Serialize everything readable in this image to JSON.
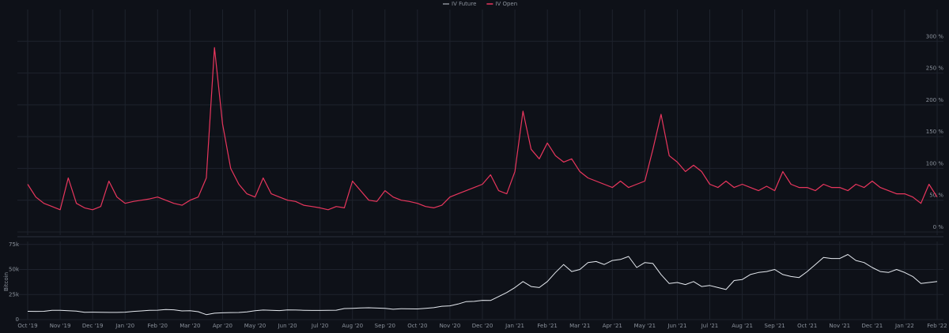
{
  "chart_data": [
    {
      "type": "line",
      "series": [
        {
          "name": "IV Future",
          "color": "#8a8f98"
        },
        {
          "name": "IV Open",
          "color": "#e8365d",
          "values": [
            75,
            55,
            45,
            40,
            35,
            85,
            45,
            38,
            35,
            40,
            80,
            55,
            45,
            48,
            50,
            52,
            55,
            50,
            45,
            42,
            50,
            55,
            85,
            290,
            170,
            100,
            75,
            60,
            55,
            85,
            60,
            55,
            50,
            48,
            42,
            40,
            38,
            35,
            40,
            38,
            80,
            65,
            50,
            48,
            65,
            55,
            50,
            48,
            45,
            40,
            38,
            42,
            55,
            60,
            65,
            70,
            75,
            90,
            65,
            60,
            95,
            190,
            130,
            115,
            140,
            120,
            110,
            115,
            95,
            85,
            80,
            75,
            70,
            80,
            70,
            75,
            80,
            130,
            185,
            120,
            110,
            95,
            105,
            95,
            75,
            70,
            80,
            70,
            75,
            70,
            65,
            72,
            65,
            95,
            75,
            70,
            70,
            65,
            75,
            70,
            70,
            65,
            75,
            70,
            80,
            70,
            65,
            60,
            60,
            55,
            45,
            75,
            55
          ]
        }
      ],
      "ylim": [
        -5,
        350
      ],
      "yticks": [
        {
          "value": 0,
          "label": "0 %"
        },
        {
          "value": 50,
          "label": "50 %"
        },
        {
          "value": 100,
          "label": "100 %"
        },
        {
          "value": 150,
          "label": "150 %"
        },
        {
          "value": 200,
          "label": "200 %"
        },
        {
          "value": 250,
          "label": "250 %"
        },
        {
          "value": 300,
          "label": "300 %"
        }
      ],
      "grid": true
    },
    {
      "type": "line",
      "y_label": "Bitcoin",
      "color": "#e6eaf0",
      "values": [
        8300,
        8200,
        8300,
        9200,
        9200,
        8800,
        8500,
        7300,
        7400,
        7300,
        7200,
        7200,
        7400,
        8200,
        8700,
        9300,
        9400,
        10000,
        9800,
        8700,
        8800,
        7900,
        5000,
        6400,
        6800,
        7000,
        7100,
        7700,
        8800,
        9500,
        9200,
        9000,
        9600,
        9500,
        9300,
        9100,
        9100,
        9200,
        9400,
        11000,
        11300,
        11600,
        11800,
        11500,
        11300,
        10300,
        10900,
        10700,
        10600,
        11300,
        11900,
        13300,
        13700,
        15500,
        18000,
        18200,
        19200,
        19100,
        23000,
        27000,
        32000,
        38000,
        33000,
        32000,
        38000,
        47000,
        55000,
        48000,
        50000,
        57000,
        58000,
        55000,
        59000,
        60000,
        63000,
        52000,
        57000,
        56000,
        45000,
        36000,
        37000,
        35000,
        38000,
        33000,
        34000,
        32000,
        30000,
        39000,
        40000,
        45000,
        47000,
        48000,
        50000,
        45000,
        43000,
        42000,
        48000,
        55000,
        62000,
        61000,
        61000,
        65000,
        59000,
        57000,
        52000,
        48000,
        47000,
        50000,
        47000,
        43000,
        36000,
        37000,
        38000
      ],
      "ylim": [
        0,
        78000
      ],
      "yticks": [
        {
          "value": 0,
          "label": "0"
        },
        {
          "value": 25000,
          "label": "25k"
        },
        {
          "value": 50000,
          "label": "50k"
        },
        {
          "value": 75000,
          "label": "75k"
        }
      ],
      "xticks": [
        "Oct '19",
        "Nov '19",
        "Dec '19",
        "Jan '20",
        "Feb '20",
        "Mar '20",
        "Apr '20",
        "May '20",
        "Jun '20",
        "Jul '20",
        "Aug '20",
        "Sep '20",
        "Oct '20",
        "Nov '20",
        "Dec '20",
        "Jan '21",
        "Feb '21",
        "Mar '21",
        "Apr '21",
        "May '21",
        "Jun '21",
        "Jul '21",
        "Aug '21",
        "Sep '21",
        "Oct '21",
        "Nov '21",
        "Dec '21",
        "Jan '22",
        "Feb '22"
      ],
      "grid": true
    }
  ]
}
